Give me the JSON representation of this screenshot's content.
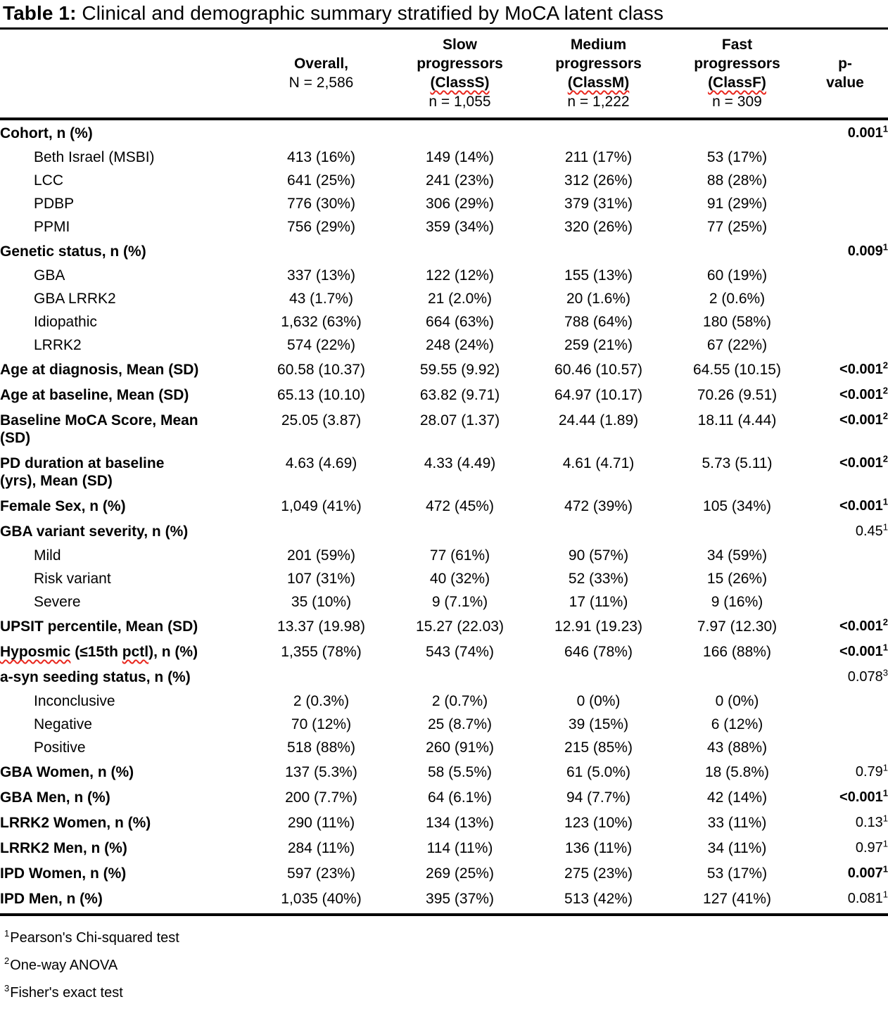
{
  "title": {
    "prefix": "Table 1:",
    "rest": " Clinical and demographic summary stratified by MoCA latent class"
  },
  "colors": {
    "text": "#000000",
    "rule": "#000000",
    "squiggle_red": "#e8261d"
  },
  "header": {
    "overall": {
      "line1": "Overall,",
      "line2": "N = 2,586"
    },
    "groups": [
      {
        "line1": "Slow",
        "line2": "progressors",
        "class_label": "(ClassS)",
        "n": "n = 1,055"
      },
      {
        "line1": "Medium",
        "line2": "progressors",
        "class_label": "(ClassM)",
        "n": "n = 1,222"
      },
      {
        "line1": "Fast",
        "line2": "progressors",
        "class_label": "(ClassF)",
        "n": "n = 309"
      }
    ],
    "p_col": {
      "line1": "p-",
      "line2": "value"
    }
  },
  "rows": [
    {
      "type": "cat",
      "label": "Cohort, n (%)",
      "p": "0.001",
      "p_sup": "1",
      "p_bold": true
    },
    {
      "type": "sub",
      "label": "Beth Israel (MSBI)",
      "values": [
        "413 (16%)",
        "149 (14%)",
        "211 (17%)",
        "53 (17%)"
      ]
    },
    {
      "type": "sub",
      "label": "LCC",
      "values": [
        "641 (25%)",
        "241 (23%)",
        "312 (26%)",
        "88 (28%)"
      ]
    },
    {
      "type": "sub",
      "label": "PDBP",
      "values": [
        "776 (30%)",
        "306 (29%)",
        "379 (31%)",
        "91 (29%)"
      ]
    },
    {
      "type": "sub",
      "label": "PPMI",
      "values": [
        "756 (29%)",
        "359 (34%)",
        "320 (26%)",
        "77 (25%)"
      ]
    },
    {
      "type": "cat",
      "label": "Genetic status, n (%)",
      "p": "0.009",
      "p_sup": "1",
      "p_bold": true
    },
    {
      "type": "sub",
      "label": "GBA",
      "values": [
        "337 (13%)",
        "122 (12%)",
        "155 (13%)",
        "60 (19%)"
      ]
    },
    {
      "type": "sub",
      "label": "GBA LRRK2",
      "values": [
        "43 (1.7%)",
        "21 (2.0%)",
        "20 (1.6%)",
        "2 (0.6%)"
      ]
    },
    {
      "type": "sub",
      "label": "Idiopathic",
      "values": [
        "1,632 (63%)",
        "664 (63%)",
        "788 (64%)",
        "180 (58%)"
      ]
    },
    {
      "type": "sub",
      "label": "LRRK2",
      "values": [
        "574 (22%)",
        "248 (24%)",
        "259 (21%)",
        "67 (22%)"
      ]
    },
    {
      "type": "cat",
      "label": "Age at diagnosis, Mean (SD)",
      "values": [
        "60.58 (10.37)",
        "59.55 (9.92)",
        "60.46 (10.57)",
        "64.55 (10.15)"
      ],
      "p": "<0.001",
      "p_sup": "2",
      "p_bold": true
    },
    {
      "type": "cat",
      "label": "Age at baseline, Mean (SD)",
      "values": [
        "65.13 (10.10)",
        "63.82 (9.71)",
        "64.97 (10.17)",
        "70.26 (9.51)"
      ],
      "p": "<0.001",
      "p_sup": "2",
      "p_bold": true
    },
    {
      "type": "cat",
      "label": "Baseline MoCA Score, Mean\n(SD)",
      "values": [
        "25.05 (3.87)",
        "28.07 (1.37)",
        "24.44 (1.89)",
        "18.11 (4.44)"
      ],
      "p": "<0.001",
      "p_sup": "2",
      "p_bold": true
    },
    {
      "type": "cat",
      "label": "PD duration at baseline\n(yrs), Mean (SD)",
      "values": [
        "4.63 (4.69)",
        "4.33 (4.49)",
        "4.61 (4.71)",
        "5.73 (5.11)"
      ],
      "p": "<0.001",
      "p_sup": "2",
      "p_bold": true
    },
    {
      "type": "cat",
      "label": "Female Sex, n (%)",
      "values": [
        "1,049 (41%)",
        "472 (45%)",
        "472 (39%)",
        "105 (34%)"
      ],
      "p": "<0.001",
      "p_sup": "1",
      "p_bold": true
    },
    {
      "type": "cat",
      "label": "GBA variant severity, n (%)",
      "p": "0.45",
      "p_sup": "1",
      "p_bold": false
    },
    {
      "type": "sub",
      "label": "Mild",
      "values": [
        "201 (59%)",
        "77 (61%)",
        "90 (57%)",
        "34 (59%)"
      ]
    },
    {
      "type": "sub",
      "label": "Risk variant",
      "values": [
        "107 (31%)",
        "40 (32%)",
        "52 (33%)",
        "15 (26%)"
      ]
    },
    {
      "type": "sub",
      "label": "Severe",
      "values": [
        "35 (10%)",
        "9 (7.1%)",
        "17 (11%)",
        "9 (16%)"
      ]
    },
    {
      "type": "cat",
      "label": "UPSIT percentile, Mean (SD)",
      "values": [
        "13.37 (19.98)",
        "15.27 (22.03)",
        "12.91 (19.23)",
        "7.97 (12.30)"
      ],
      "p": "<0.001",
      "p_sup": "2",
      "p_bold": true
    },
    {
      "type": "cat",
      "parts": [
        {
          "t": "Hyposmic",
          "sq": true
        },
        {
          "t": " (≤15th ",
          "sq": false
        },
        {
          "t": "pctl",
          "sq": true
        },
        {
          "t": "), n (%)",
          "sq": false
        }
      ],
      "values": [
        "1,355 (78%)",
        "543 (74%)",
        "646 (78%)",
        "166 (88%)"
      ],
      "p": "<0.001",
      "p_sup": "1",
      "p_bold": true
    },
    {
      "type": "cat",
      "label": "a-syn seeding status, n (%)",
      "p": "0.078",
      "p_sup": "3",
      "p_bold": false
    },
    {
      "type": "sub",
      "label": "Inconclusive",
      "values": [
        "2 (0.3%)",
        "2 (0.7%)",
        "0 (0%)",
        "0 (0%)"
      ]
    },
    {
      "type": "sub",
      "label": "Negative",
      "values": [
        "70 (12%)",
        "25 (8.7%)",
        "39 (15%)",
        "6 (12%)"
      ]
    },
    {
      "type": "sub",
      "label": "Positive",
      "values": [
        "518 (88%)",
        "260 (91%)",
        "215 (85%)",
        "43 (88%)"
      ]
    },
    {
      "type": "cat",
      "label": "GBA Women, n (%)",
      "values": [
        "137 (5.3%)",
        "58 (5.5%)",
        "61 (5.0%)",
        "18 (5.8%)"
      ],
      "p": "0.79",
      "p_sup": "1",
      "p_bold": false
    },
    {
      "type": "cat",
      "label": "GBA Men, n (%)",
      "values": [
        "200 (7.7%)",
        "64 (6.1%)",
        "94 (7.7%)",
        "42 (14%)"
      ],
      "p": "<0.001",
      "p_sup": "1",
      "p_bold": true
    },
    {
      "type": "cat",
      "label": "LRRK2 Women, n (%)",
      "values": [
        "290 (11%)",
        "134 (13%)",
        "123 (10%)",
        "33 (11%)"
      ],
      "p": "0.13",
      "p_sup": "1",
      "p_bold": false
    },
    {
      "type": "cat",
      "label": "LRRK2 Men, n (%)",
      "values": [
        "284 (11%)",
        "114 (11%)",
        "136 (11%)",
        "34 (11%)"
      ],
      "p": "0.97",
      "p_sup": "1",
      "p_bold": false
    },
    {
      "type": "cat",
      "label": "IPD Women, n (%)",
      "values": [
        "597 (23%)",
        "269 (25%)",
        "275 (23%)",
        "53 (17%)"
      ],
      "p": "0.007",
      "p_sup": "1",
      "p_bold": true
    },
    {
      "type": "cat",
      "label": "IPD Men, n (%)",
      "values": [
        "1,035 (40%)",
        "395 (37%)",
        "513 (42%)",
        "127 (41%)"
      ],
      "p": "0.081",
      "p_sup": "1",
      "p_bold": false
    }
  ],
  "footnotes": [
    {
      "sup": "1",
      "text": "Pearson's Chi-squared test"
    },
    {
      "sup": "2",
      "text": "One-way ANOVA"
    },
    {
      "sup": "3",
      "text": "Fisher's exact test"
    }
  ]
}
